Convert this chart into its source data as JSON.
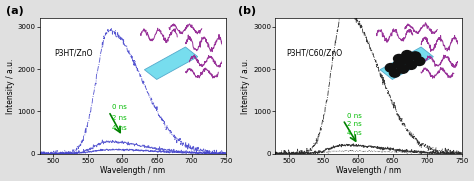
{
  "panel_a_label": "(a)",
  "panel_b_label": "(b)",
  "text_a": "P3HT/ZnO",
  "text_b": "P3HT/C60/ZnO",
  "xlabel": "Wavelength / nm",
  "ylabel": "Intensity / a.u.",
  "xlim": [
    480,
    750
  ],
  "ylim": [
    0,
    3200
  ],
  "yticks": [
    0,
    1000,
    2000,
    3000
  ],
  "xticks": [
    500,
    550,
    600,
    650,
    700,
    750
  ],
  "legend_labels": [
    "0 ns",
    "2 ns",
    "4 ns"
  ],
  "legend_color": "#00bb00",
  "bg_color": "#ffffff",
  "fig_bg": "#e0e0e0",
  "color_a": "#4444cc",
  "color_b": "#222222",
  "peak_nm": 580,
  "sigma_rise": 18,
  "sigma_fall": 48,
  "peak_0ns_a": 2900,
  "peak_2ns_a": 280,
  "peak_4ns_a": 90,
  "peak_0ns_b": 3400,
  "peak_2ns_b": 200,
  "peak_4ns_b": 60,
  "noise_scale": 0.018
}
